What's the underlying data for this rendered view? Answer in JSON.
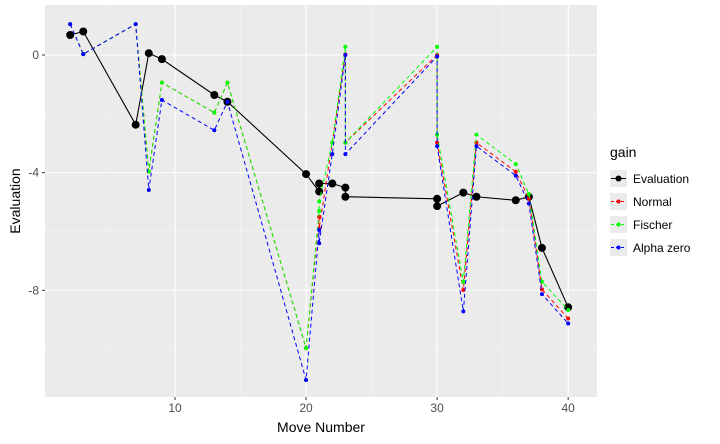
{
  "chart_data": {
    "type": "line",
    "title": "",
    "xlabel": "Move Number",
    "ylabel": "Evaluation",
    "xlim": [
      0.08,
      42.2
    ],
    "ylim": [
      -11.63,
      1.7
    ],
    "xticks": [
      10,
      20,
      30,
      40
    ],
    "yticks": [
      0,
      -4,
      -8
    ],
    "grid": true,
    "legend": {
      "title": "gain",
      "placement": "right"
    },
    "x": [
      2,
      3,
      7,
      8,
      9,
      13,
      14,
      20,
      21,
      21,
      22,
      23,
      23,
      30,
      30,
      32,
      33,
      36,
      37,
      38,
      40
    ],
    "series": [
      {
        "name": "Evaluation",
        "color": "#000000",
        "style": "solid",
        "values": [
          0.68,
          0.8,
          -2.37,
          0.06,
          -0.14,
          -1.36,
          -1.59,
          -4.05,
          -4.64,
          -4.37,
          -4.37,
          -4.51,
          -4.82,
          -4.89,
          -5.14,
          -4.68,
          -4.82,
          -4.94,
          -4.82,
          -6.56,
          -8.58
        ]
      },
      {
        "name": "Normal",
        "color": "#ff0000",
        "style": "dashed",
        "values": [
          1.05,
          0.03,
          1.05,
          -3.96,
          -0.94,
          -1.96,
          -0.94,
          -9.97,
          -5.5,
          -5.9,
          -2.98,
          0.02,
          -2.98,
          0.0,
          -2.98,
          -7.99,
          -2.98,
          -3.97,
          -4.88,
          -7.97,
          -8.96
        ]
      },
      {
        "name": "Fischer",
        "color": "#00ff00",
        "style": "dashed",
        "values": [
          1.05,
          0.03,
          1.05,
          -3.96,
          -0.94,
          -1.96,
          -0.94,
          -9.97,
          -5.3,
          -4.98,
          -2.98,
          0.28,
          -2.98,
          0.28,
          -2.71,
          -7.71,
          -2.71,
          -3.71,
          -4.73,
          -7.71,
          -8.67
        ]
      },
      {
        "name": "Alpha zero",
        "color": "#0000ff",
        "style": "dashed",
        "values": [
          1.05,
          0.03,
          1.05,
          -4.59,
          -1.53,
          -2.56,
          -1.59,
          -11.05,
          -5.95,
          -6.4,
          -3.37,
          0.0,
          -3.37,
          -0.05,
          -3.1,
          -8.72,
          -3.1,
          -4.1,
          -5.05,
          -8.13,
          -9.13
        ]
      }
    ]
  }
}
